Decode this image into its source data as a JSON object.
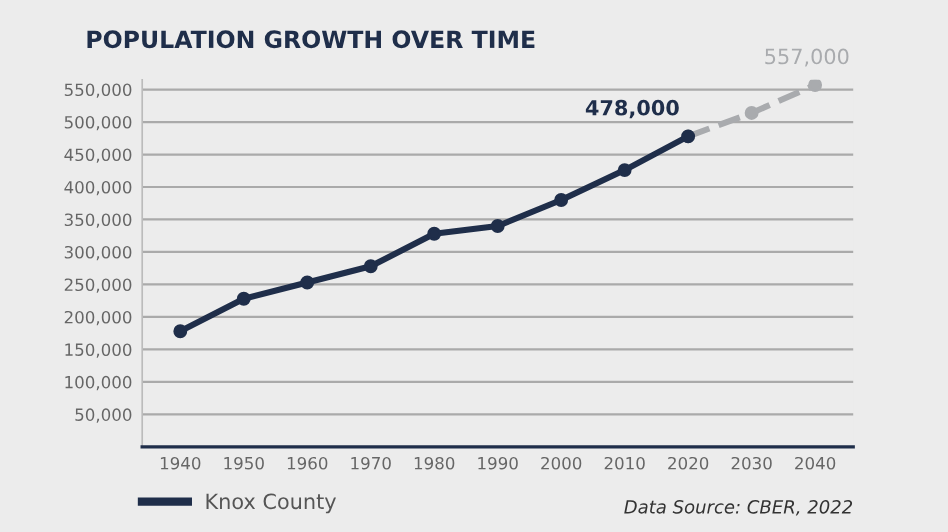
{
  "chart_data": {
    "type": "line",
    "title": "POPULATION GROWTH OVER TIME",
    "categories": [
      "1940",
      "1950",
      "1960",
      "1970",
      "1980",
      "1990",
      "2000",
      "2010",
      "2020",
      "2030",
      "2040"
    ],
    "series": [
      {
        "name": "Knox County",
        "color": "#1f2e4a",
        "line_style": "solid",
        "values": [
          178000,
          228000,
          253000,
          278000,
          328000,
          340000,
          380000,
          426000,
          478000,
          null,
          null
        ],
        "value_labels": [
          null,
          null,
          null,
          null,
          null,
          null,
          null,
          null,
          "478,000",
          null,
          null
        ]
      },
      {
        "color": "#a9abae",
        "line_style": "dashed",
        "values": [
          null,
          null,
          null,
          null,
          null,
          null,
          null,
          null,
          478000,
          514000,
          557000
        ],
        "value_labels": [
          null,
          null,
          null,
          null,
          null,
          null,
          null,
          null,
          null,
          null,
          "557,000"
        ]
      }
    ],
    "ylim": [
      0,
      565000
    ],
    "yticks": [
      {
        "value": 50000,
        "label": "50,000"
      },
      {
        "value": 100000,
        "label": "100,000"
      },
      {
        "value": 150000,
        "label": "150,000"
      },
      {
        "value": 200000,
        "label": "200,000"
      },
      {
        "value": 250000,
        "label": "250,000"
      },
      {
        "value": 300000,
        "label": "300,000"
      },
      {
        "value": 350000,
        "label": "350,000"
      },
      {
        "value": 400000,
        "label": "400,000"
      },
      {
        "value": 450000,
        "label": "450,000"
      },
      {
        "value": 500000,
        "label": "500,000"
      },
      {
        "value": 550000,
        "label": "550,000"
      }
    ],
    "grid": "y",
    "legend": "bottom left",
    "marker": "circle",
    "annotations": [
      "Data Source: CBER, 2022"
    ]
  }
}
